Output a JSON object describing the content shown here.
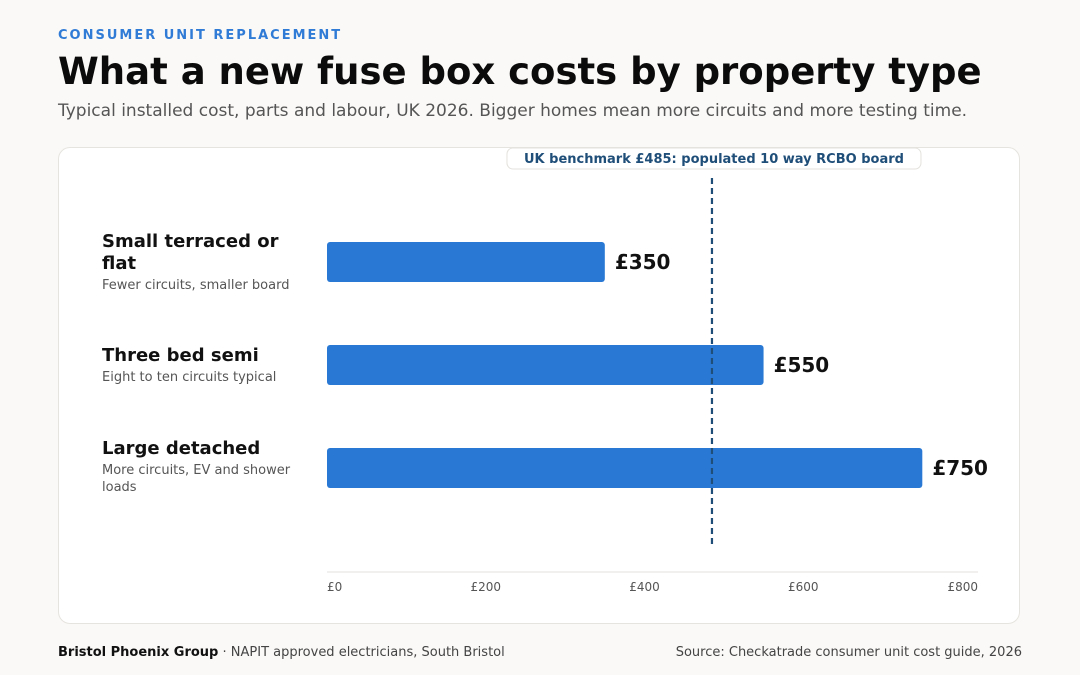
{
  "header": {
    "kicker": "CONSUMER UNIT REPLACEMENT",
    "title": "What a new fuse box costs by property type",
    "subtitle": "Typical installed cost, parts and labour, UK 2026. Bigger homes mean more circuits and more testing time."
  },
  "chart_data": {
    "type": "bar",
    "orientation": "horizontal",
    "categories": [
      "Small terraced or flat",
      "Three bed semi",
      "Large detached"
    ],
    "descriptions": [
      "Fewer circuits, smaller board",
      "Eight to ten circuits typical",
      "More circuits, EV and shower loads"
    ],
    "values": [
      350,
      550,
      750
    ],
    "value_labels": [
      "£350",
      "£550",
      "£750"
    ],
    "xlim": [
      0,
      800
    ],
    "x_ticks": [
      0,
      200,
      400,
      600,
      800
    ],
    "x_tick_labels": [
      "£0",
      "£200",
      "£400",
      "£600",
      "£800"
    ],
    "benchmark": {
      "value": 485,
      "label": "UK benchmark £485: populated 10 way RCBO board"
    },
    "grid": false,
    "bar_color": "#2979d4",
    "benchmark_color": "#1f4e79"
  },
  "footer": {
    "brand": "Bristol Phoenix Group",
    "tagline": " · NAPIT approved electricians, South Bristol",
    "source": "Source: Checkatrade consumer unit cost guide, 2026"
  }
}
